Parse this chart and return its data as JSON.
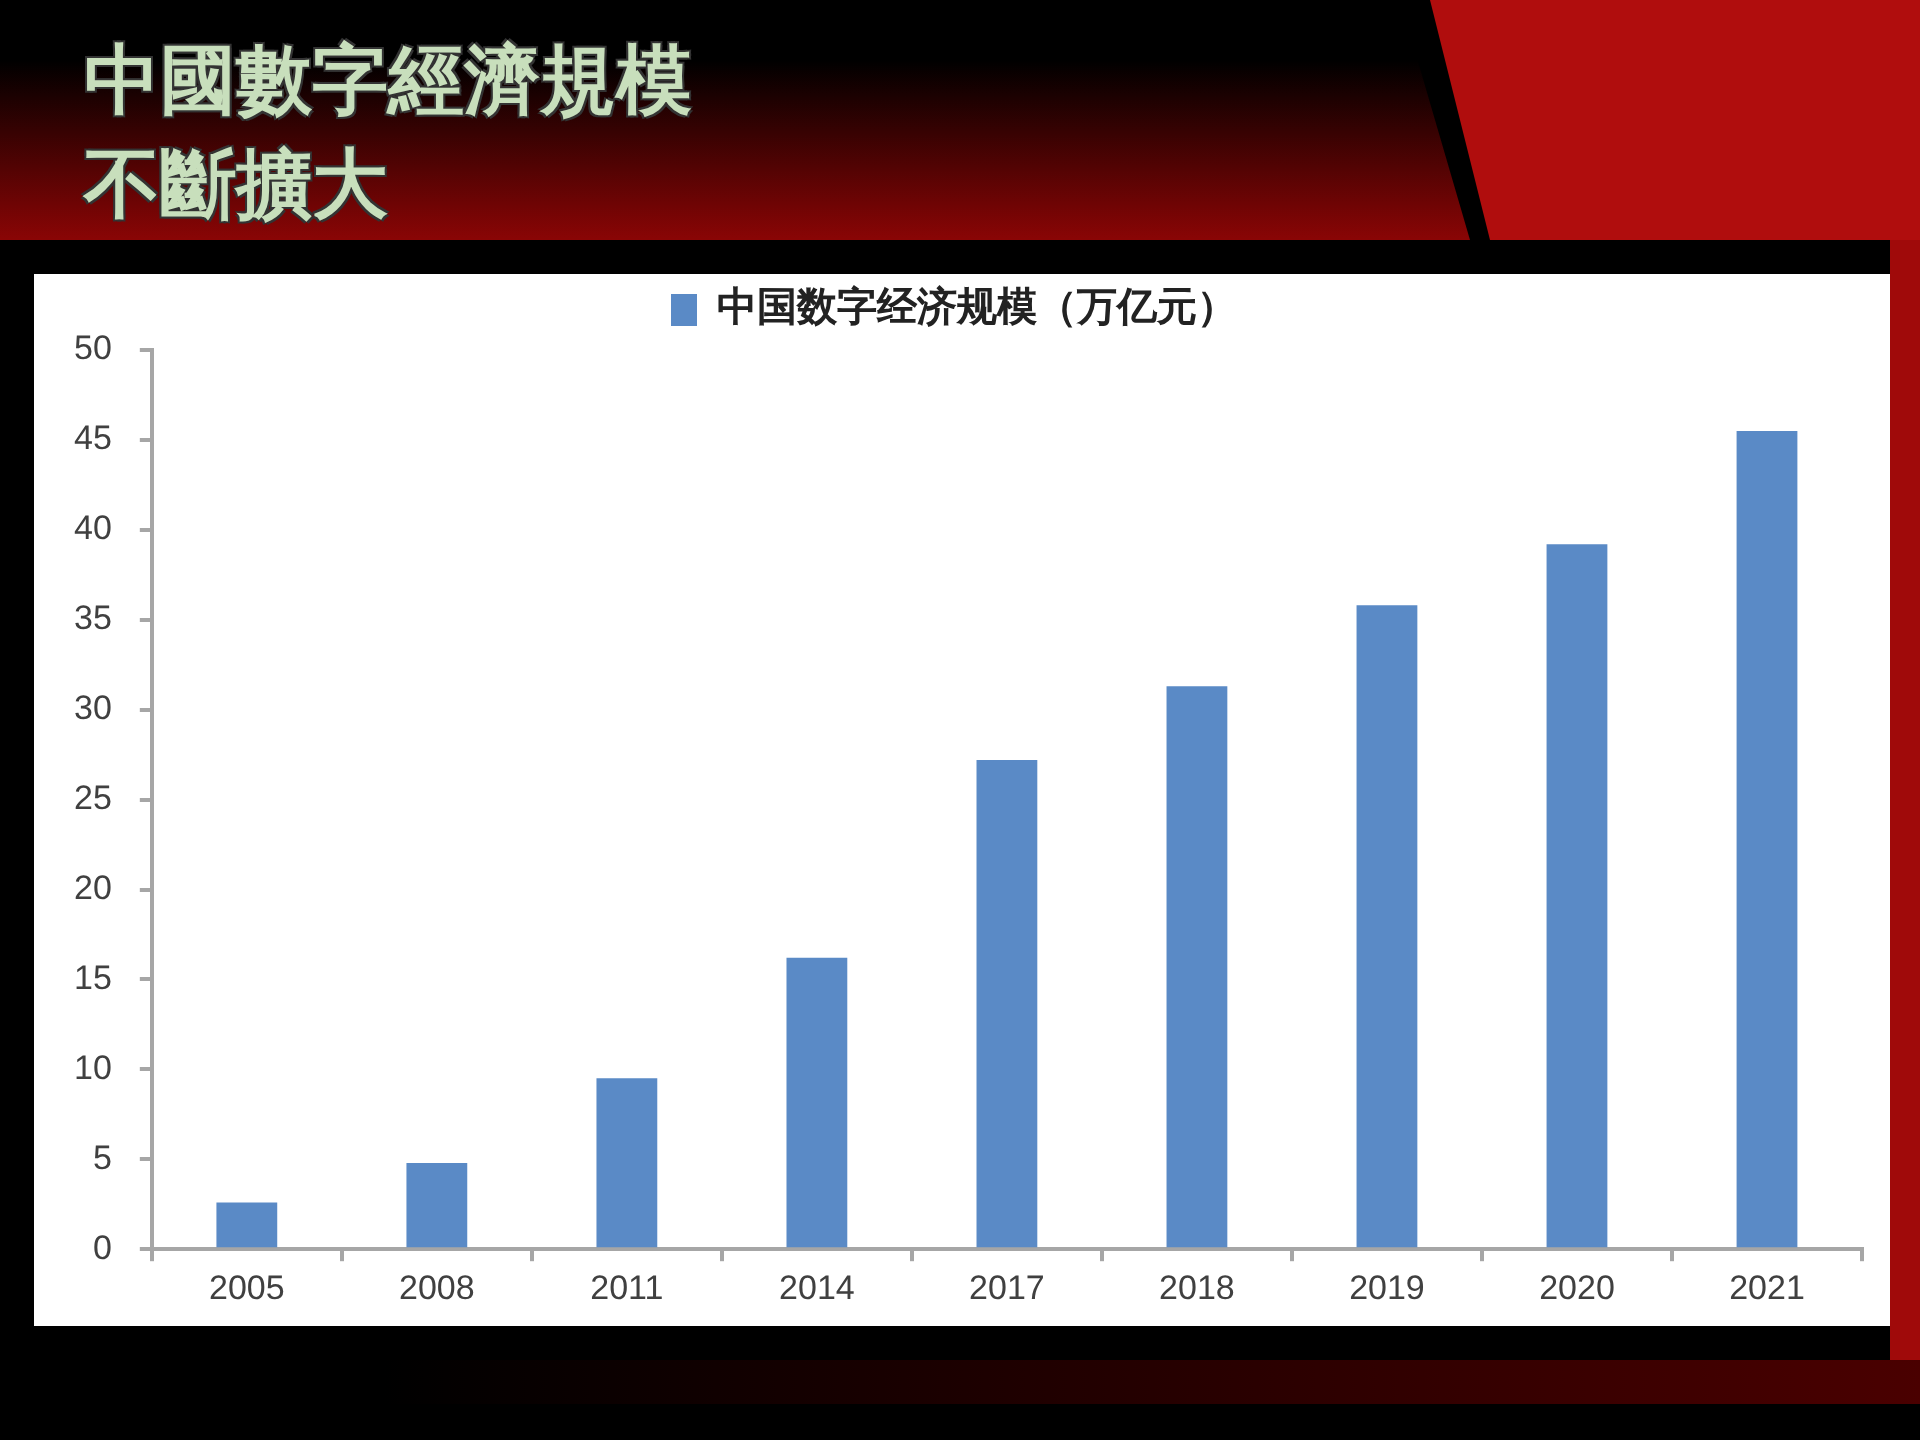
{
  "chart_data": {
    "type": "bar",
    "title": "中國數字經濟規模不斷擴大",
    "categories": [
      "2005",
      "2008",
      "2011",
      "2014",
      "2017",
      "2018",
      "2019",
      "2020",
      "2021"
    ],
    "series": [
      {
        "name": "中国数字经济规模（万亿元）",
        "color": "#5a8ac6",
        "values": [
          2.6,
          4.8,
          9.5,
          16.2,
          27.2,
          31.3,
          35.8,
          39.2,
          45.5
        ]
      }
    ],
    "ylim": [
      0,
      50
    ],
    "yticks": [
      0,
      5,
      10,
      15,
      20,
      25,
      30,
      35,
      40,
      45,
      50
    ],
    "grid": false,
    "legend": "top"
  }
}
